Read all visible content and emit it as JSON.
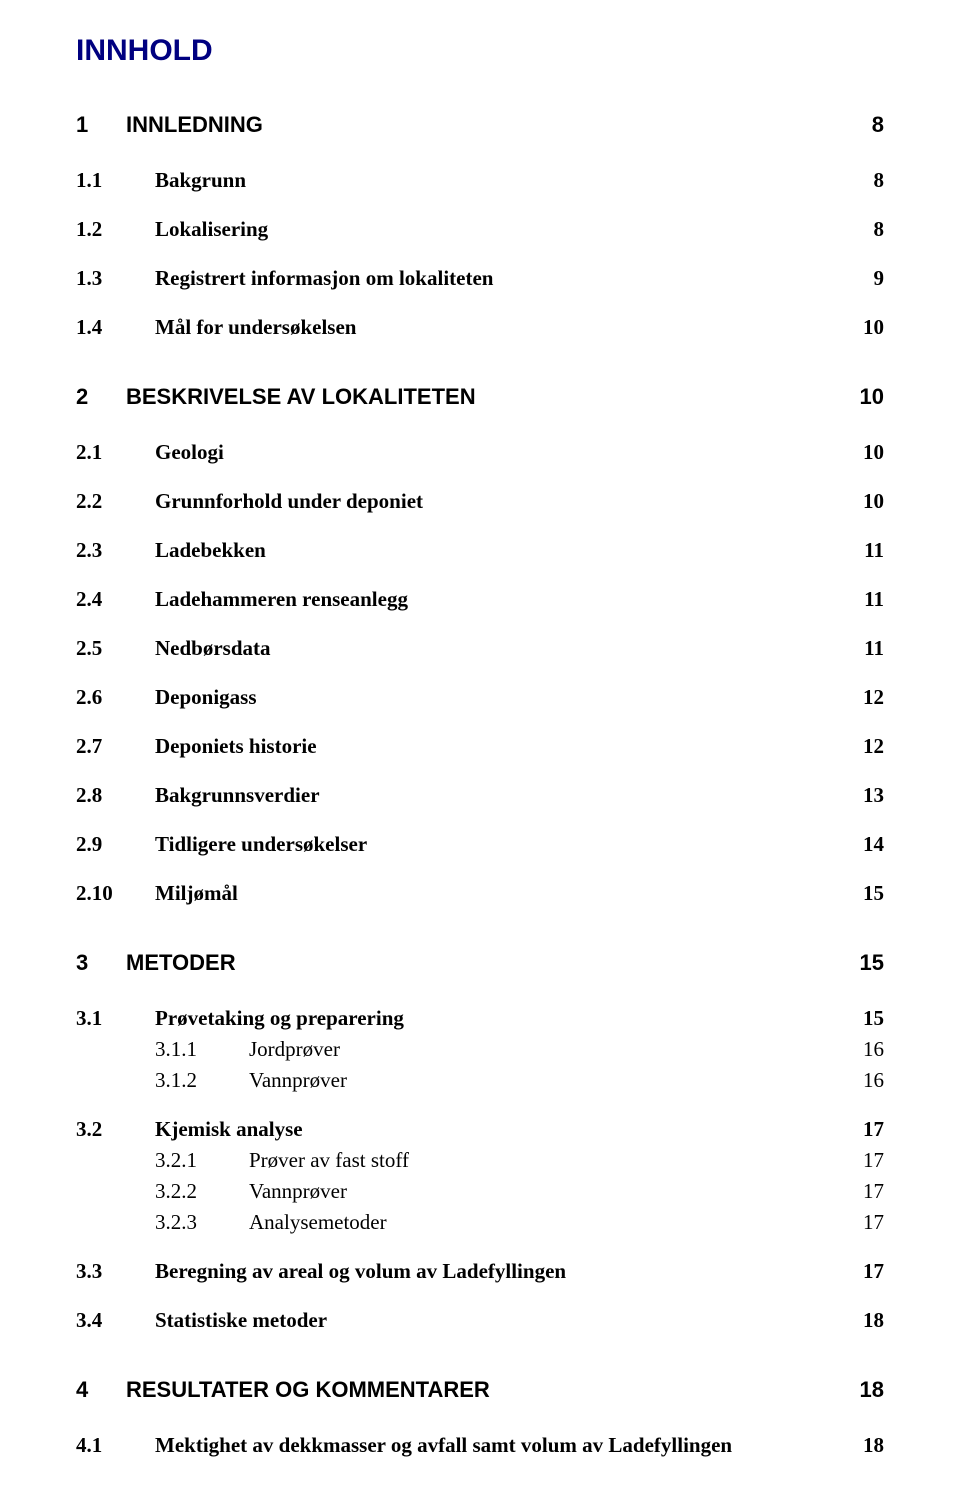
{
  "title": "INNHOLD",
  "entries": [
    {
      "level": "section",
      "num": "1",
      "label": "INNLEDNING",
      "page": "8"
    },
    {
      "level": "sub",
      "num": "1.1",
      "label": "Bakgrunn",
      "page": "8"
    },
    {
      "level": "sub",
      "num": "1.2",
      "label": "Lokalisering",
      "page": "8"
    },
    {
      "level": "sub",
      "num": "1.3",
      "label": "Registrert informasjon om lokaliteten",
      "page": "9"
    },
    {
      "level": "sub",
      "num": "1.4",
      "label": "Mål for undersøkelsen",
      "page": "10"
    },
    {
      "level": "section",
      "num": "2",
      "label": "BESKRIVELSE AV LOKALITETEN",
      "page": "10"
    },
    {
      "level": "sub",
      "num": "2.1",
      "label": "Geologi",
      "page": "10"
    },
    {
      "level": "sub",
      "num": "2.2",
      "label": "Grunnforhold under deponiet",
      "page": "10"
    },
    {
      "level": "sub",
      "num": "2.3",
      "label": "Ladebekken",
      "page": "11"
    },
    {
      "level": "sub",
      "num": "2.4",
      "label": "Ladehammeren renseanlegg",
      "page": "11"
    },
    {
      "level": "sub",
      "num": "2.5",
      "label": "Nedbørsdata",
      "page": "11"
    },
    {
      "level": "sub",
      "num": "2.6",
      "label": "Deponigass",
      "page": "12"
    },
    {
      "level": "sub",
      "num": "2.7",
      "label": "Deponiets historie",
      "page": "12"
    },
    {
      "level": "sub",
      "num": "2.8",
      "label": "Bakgrunnsverdier",
      "page": "13"
    },
    {
      "level": "sub",
      "num": "2.9",
      "label": "Tidligere undersøkelser",
      "page": "14"
    },
    {
      "level": "sub",
      "num": "2.10",
      "label": "Miljømål",
      "page": "15"
    },
    {
      "level": "section",
      "num": "3",
      "label": "METODER",
      "page": "15"
    },
    {
      "level": "sub",
      "num": "3.1",
      "label": "Prøvetaking og preparering",
      "page": "15"
    },
    {
      "level": "subsub",
      "num": "3.1.1",
      "label": "Jordprøver",
      "page": "16"
    },
    {
      "level": "subsub",
      "num": "3.1.2",
      "label": "Vannprøver",
      "page": "16"
    },
    {
      "level": "sub",
      "num": "3.2",
      "label": "Kjemisk analyse",
      "page": "17"
    },
    {
      "level": "subsub",
      "num": "3.2.1",
      "label": "Prøver av fast stoff",
      "page": "17"
    },
    {
      "level": "subsub",
      "num": "3.2.2",
      "label": "Vannprøver",
      "page": "17"
    },
    {
      "level": "subsub",
      "num": "3.2.3",
      "label": "Analysemetoder",
      "page": "17"
    },
    {
      "level": "sub",
      "num": "3.3",
      "label": "Beregning av areal og volum av Ladefyllingen",
      "page": "17"
    },
    {
      "level": "sub",
      "num": "3.4",
      "label": "Statistiske metoder",
      "page": "18"
    },
    {
      "level": "section",
      "num": "4",
      "label": "RESULTATER OG KOMMENTARER",
      "page": "18"
    },
    {
      "level": "sub",
      "num": "4.1",
      "label": "Mektighet av dekkmasser og avfall samt volum av Ladefyllingen",
      "page": "18"
    }
  ]
}
